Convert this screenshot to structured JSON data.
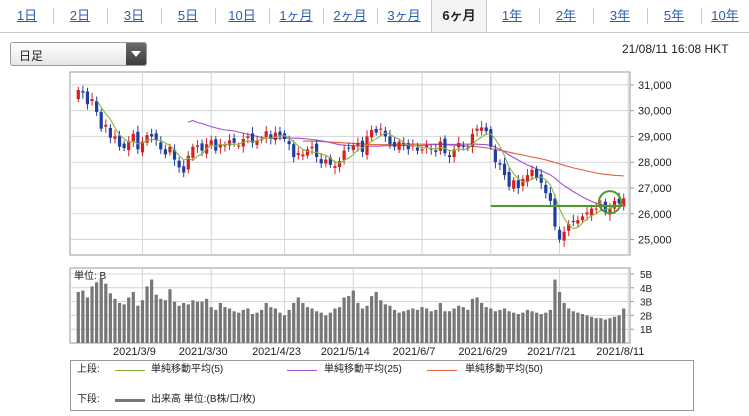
{
  "tabs": [
    {
      "label": "1日",
      "active": false
    },
    {
      "label": "2日",
      "active": false
    },
    {
      "label": "3日",
      "active": false
    },
    {
      "label": "5日",
      "active": false
    },
    {
      "label": "10日",
      "active": false
    },
    {
      "label": "1ヶ月",
      "active": false
    },
    {
      "label": "2ヶ月",
      "active": false
    },
    {
      "label": "3ヶ月",
      "active": false
    },
    {
      "label": "6ヶ月",
      "active": true
    },
    {
      "label": "1年",
      "active": false
    },
    {
      "label": "2年",
      "active": false
    },
    {
      "label": "3年",
      "active": false
    },
    {
      "label": "5年",
      "active": false
    },
    {
      "label": "10年",
      "active": false
    }
  ],
  "period_select": {
    "value": "日足"
  },
  "timestamp": "21/08/11 16:08 HKT",
  "volume_unit_label": "単位: B",
  "legend": {
    "upper_label": "上段:",
    "lower_label": "下段:",
    "ma5": "単純移動平均(5)",
    "ma25": "単純移動平均(25)",
    "ma50": "単純移動平均(50)",
    "volume": "出来高 単位:(B株/口/枚)"
  },
  "colors": {
    "up": "#d42020",
    "down": "#1f3fa0",
    "ma5": "#8cb43c",
    "ma25": "#a050d0",
    "ma50": "#e06040",
    "volume": "#777777",
    "highlight": "#4c9a2a"
  },
  "chart_data": {
    "type": "candlestick",
    "price_axis": {
      "ticks": [
        25000,
        26000,
        27000,
        28000,
        29000,
        30000,
        31000
      ],
      "range": [
        24400,
        31500
      ]
    },
    "volume_axis": {
      "ticks": [
        "1B",
        "2B",
        "3B",
        "4B",
        "5B"
      ],
      "range": [
        0,
        5
      ]
    },
    "x_ticks": [
      "2021/3/9",
      "2021/3/30",
      "2021/4/23",
      "2021/5/14",
      "2021/6/7",
      "2021/6/29",
      "2021/7/21",
      "2021/8/11"
    ],
    "tick_index": [
      14,
      29,
      45,
      60,
      75,
      90,
      105,
      120
    ],
    "closes": [
      30800,
      30700,
      30250,
      30450,
      29950,
      29300,
      29450,
      28950,
      29000,
      28600,
      28550,
      28800,
      29100,
      28500,
      28800,
      29050,
      29000,
      28850,
      28500,
      28300,
      28600,
      28100,
      27800,
      27600,
      28250,
      28600,
      28650,
      28450,
      28700,
      28850,
      28450,
      28700,
      28650,
      28850,
      28750,
      28650,
      28900,
      29000,
      28750,
      28850,
      28900,
      29200,
      28900,
      29150,
      29000,
      28900,
      28700,
      28200,
      28350,
      28300,
      28500,
      28600,
      28200,
      27950,
      28100,
      27900,
      27850,
      28050,
      28450,
      28550,
      28650,
      28750,
      28400,
      29000,
      29250,
      29150,
      29300,
      29000,
      28700,
      28600,
      28800,
      28700,
      28500,
      28650,
      28450,
      28500,
      28650,
      28500,
      28400,
      28800,
      28350,
      28200,
      28500,
      28750,
      28600,
      28550,
      29100,
      29300,
      29350,
      29200,
      28600,
      28000,
      27900,
      27500,
      27050,
      27300,
      27000,
      27350,
      27500,
      27700,
      27400,
      27200,
      26800,
      26500,
      25500,
      25000,
      25300,
      25600,
      25700,
      25750,
      25900,
      26050,
      26200,
      26200,
      26350,
      26050,
      26200,
      26500,
      26400,
      26600
    ],
    "volumes": [
      3.7,
      3.8,
      3.3,
      4.1,
      4.4,
      4.7,
      4.3,
      3.6,
      3.2,
      2.9,
      2.8,
      3.3,
      3.7,
      2.7,
      3.1,
      4.1,
      4.6,
      3.5,
      3.2,
      3.1,
      3.9,
      3.0,
      2.7,
      2.9,
      2.8,
      3.1,
      3.0,
      3.0,
      3.2,
      2.6,
      2.4,
      2.9,
      2.6,
      2.5,
      2.3,
      2.2,
      2.4,
      2.5,
      2.1,
      2.2,
      2.4,
      2.9,
      2.6,
      2.5,
      2.2,
      2.0,
      2.4,
      2.9,
      3.3,
      2.9,
      2.6,
      2.5,
      2.3,
      2.2,
      2.0,
      2.2,
      2.5,
      2.6,
      3.3,
      3.4,
      3.8,
      2.9,
      2.5,
      2.7,
      3.4,
      3.7,
      3.1,
      2.8,
      2.7,
      2.4,
      2.2,
      2.3,
      2.4,
      2.5,
      2.4,
      2.6,
      2.5,
      2.3,
      2.4,
      2.9,
      2.3,
      2.3,
      2.5,
      2.7,
      2.6,
      2.4,
      3.2,
      3.3,
      2.9,
      2.6,
      2.5,
      2.3,
      2.4,
      2.5,
      2.3,
      2.2,
      2.1,
      2.2,
      2.4,
      2.3,
      2.2,
      2.1,
      2.2,
      2.4,
      4.6,
      3.7,
      2.9,
      2.5,
      2.3,
      2.2,
      2.1,
      2.0,
      1.9,
      1.8,
      1.8,
      1.7,
      1.8,
      1.9,
      2.0,
      2.5
    ],
    "ma5": [
      null,
      null,
      null,
      null,
      30430,
      30130,
      29880,
      29660,
      29330,
      29060,
      28910,
      28780,
      28810,
      28710,
      28750,
      28850,
      28890,
      28860,
      28850,
      28740,
      28650,
      28470,
      28260,
      28080,
      28150,
      28070,
      28240,
      28310,
      28530,
      28670,
      28630,
      28690,
      28670,
      28710,
      28690,
      28710,
      28770,
      28830,
      28780,
      28830,
      28880,
      28940,
      28930,
      28970,
      29030,
      29030,
      28930,
      28790,
      28630,
      28500,
      28420,
      28390,
      28390,
      28310,
      28270,
      28150,
      28000,
      27970,
      28070,
      28160,
      28290,
      28480,
      28560,
      28670,
      28810,
      28910,
      29020,
      29140,
      29090,
      28970,
      28900,
      28760,
      28660,
      28650,
      28620,
      28560,
      28560,
      28540,
      28500,
      28570,
      28540,
      28450,
      28450,
      28520,
      28480,
      28520,
      28700,
      28860,
      28980,
      29100,
      29100,
      28890,
      28610,
      28240,
      27810,
      27550,
      27360,
      27240,
      27240,
      27370,
      27390,
      27430,
      27320,
      27120,
      26680,
      26200,
      25820,
      25580,
      25420,
      25470,
      25650,
      25800,
      25920,
      26010,
      26140,
      26170,
      26200,
      26270,
      26300,
      26350
    ],
    "ma25": [
      null,
      null,
      null,
      null,
      null,
      null,
      null,
      null,
      null,
      null,
      null,
      null,
      null,
      null,
      null,
      null,
      null,
      null,
      null,
      null,
      null,
      null,
      null,
      null,
      29550,
      29620,
      29540,
      29500,
      29440,
      29380,
      29330,
      29290,
      29250,
      29240,
      29210,
      29170,
      29130,
      29080,
      29040,
      29000,
      28960,
      28940,
      28930,
      28920,
      28930,
      28940,
      28940,
      28930,
      28930,
      28920,
      28900,
      28880,
      28860,
      28830,
      28800,
      28760,
      28720,
      28680,
      28660,
      28650,
      28640,
      28630,
      28620,
      28620,
      28620,
      28620,
      28630,
      28640,
      28640,
      28640,
      28640,
      28650,
      28640,
      28630,
      28640,
      28650,
      28660,
      28680,
      28690,
      28710,
      28700,
      28690,
      28690,
      28700,
      28700,
      28700,
      28710,
      28700,
      28690,
      28680,
      28650,
      28580,
      28500,
      28400,
      28280,
      28180,
      28080,
      27980,
      27890,
      27820,
      27740,
      27670,
      27590,
      27510,
      27380,
      27230,
      27090,
      26980,
      26860,
      26760,
      26650,
      26560,
      26480,
      26410,
      26350,
      26330,
      26310,
      26310,
      26310,
      26320
    ],
    "ma50": [
      null,
      null,
      null,
      null,
      null,
      null,
      null,
      null,
      null,
      null,
      null,
      null,
      null,
      null,
      null,
      null,
      null,
      null,
      null,
      null,
      null,
      null,
      null,
      null,
      null,
      null,
      null,
      null,
      null,
      null,
      null,
      null,
      null,
      null,
      null,
      null,
      null,
      null,
      null,
      null,
      null,
      null,
      null,
      null,
      null,
      null,
      null,
      null,
      null,
      28820,
      28820,
      28820,
      28810,
      28800,
      28790,
      28780,
      28770,
      28760,
      28750,
      28740,
      28730,
      28720,
      28710,
      28700,
      28690,
      28680,
      28680,
      28680,
      28680,
      28690,
      28700,
      28700,
      28700,
      28700,
      28700,
      28700,
      28700,
      28700,
      28700,
      28690,
      28680,
      28670,
      28660,
      28650,
      28640,
      28620,
      28610,
      28600,
      28580,
      28560,
      28530,
      28490,
      28460,
      28430,
      28390,
      28350,
      28310,
      28280,
      28240,
      28200,
      28170,
      28130,
      28090,
      28040,
      27990,
      27940,
      27880,
      27830,
      27780,
      27740,
      27700,
      27660,
      27620,
      27580,
      27550,
      27530,
      27510,
      27490,
      27480,
      27470
    ]
  }
}
